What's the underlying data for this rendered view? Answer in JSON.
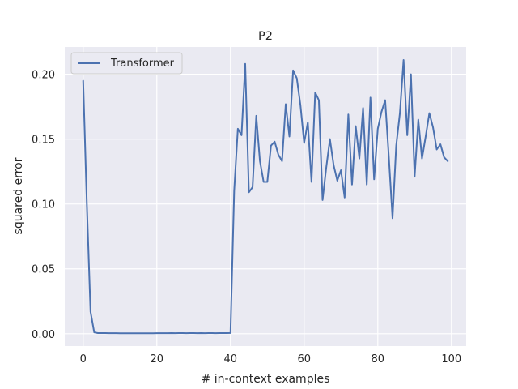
{
  "chart_data": {
    "type": "line",
    "title": "P2",
    "xlabel": "# in-context examples",
    "ylabel": "squared error",
    "xlim": [
      -5,
      104
    ],
    "ylim": [
      -0.0095,
      0.221
    ],
    "xticks": [
      0,
      20,
      40,
      60,
      80,
      100
    ],
    "yticks": [
      0.0,
      0.05,
      0.1,
      0.15,
      0.2
    ],
    "ytick_labels": [
      "0.00",
      "0.05",
      "0.10",
      "0.15",
      "0.20"
    ],
    "grid": true,
    "background": "#eaeaf2",
    "legend": {
      "position": "top-left",
      "entries": [
        "Transformer"
      ]
    },
    "series": [
      {
        "name": "Transformer",
        "color": "#4c72b0",
        "x": [
          0,
          1,
          2,
          3,
          4,
          5,
          6,
          7,
          8,
          9,
          10,
          11,
          12,
          13,
          14,
          15,
          16,
          17,
          18,
          19,
          20,
          21,
          22,
          23,
          24,
          25,
          26,
          27,
          28,
          29,
          30,
          31,
          32,
          33,
          34,
          35,
          36,
          37,
          38,
          39,
          40,
          41,
          42,
          43,
          44,
          45,
          46,
          47,
          48,
          49,
          50,
          51,
          52,
          53,
          54,
          55,
          56,
          57,
          58,
          59,
          60,
          61,
          62,
          63,
          64,
          65,
          66,
          67,
          68,
          69,
          70,
          71,
          72,
          73,
          74,
          75,
          76,
          77,
          78,
          79,
          80,
          81,
          82,
          83,
          84,
          85,
          86,
          87,
          88,
          89,
          90,
          91,
          92,
          93,
          94,
          95,
          96,
          97,
          98,
          99
        ],
        "y": [
          0.195,
          0.1,
          0.017,
          0.001,
          0.0005,
          0.0005,
          0.0005,
          0.0004,
          0.0004,
          0.0004,
          0.0003,
          0.0003,
          0.0003,
          0.0003,
          0.0003,
          0.0003,
          0.0003,
          0.0003,
          0.0003,
          0.0003,
          0.0004,
          0.0004,
          0.0004,
          0.0004,
          0.0005,
          0.0004,
          0.0005,
          0.0005,
          0.0004,
          0.0005,
          0.0005,
          0.0004,
          0.0005,
          0.0004,
          0.0005,
          0.0005,
          0.0004,
          0.0005,
          0.0005,
          0.0005,
          0.0006,
          0.11,
          0.158,
          0.153,
          0.208,
          0.109,
          0.113,
          0.168,
          0.133,
          0.117,
          0.117,
          0.145,
          0.148,
          0.138,
          0.133,
          0.177,
          0.152,
          0.203,
          0.197,
          0.176,
          0.147,
          0.163,
          0.117,
          0.186,
          0.18,
          0.103,
          0.128,
          0.15,
          0.13,
          0.118,
          0.126,
          0.105,
          0.169,
          0.115,
          0.16,
          0.135,
          0.174,
          0.115,
          0.182,
          0.119,
          0.158,
          0.171,
          0.18,
          0.136,
          0.089,
          0.145,
          0.17,
          0.211,
          0.153,
          0.2,
          0.121,
          0.165,
          0.135,
          0.152,
          0.17,
          0.159,
          0.142,
          0.146,
          0.136,
          0.133
        ]
      }
    ]
  }
}
